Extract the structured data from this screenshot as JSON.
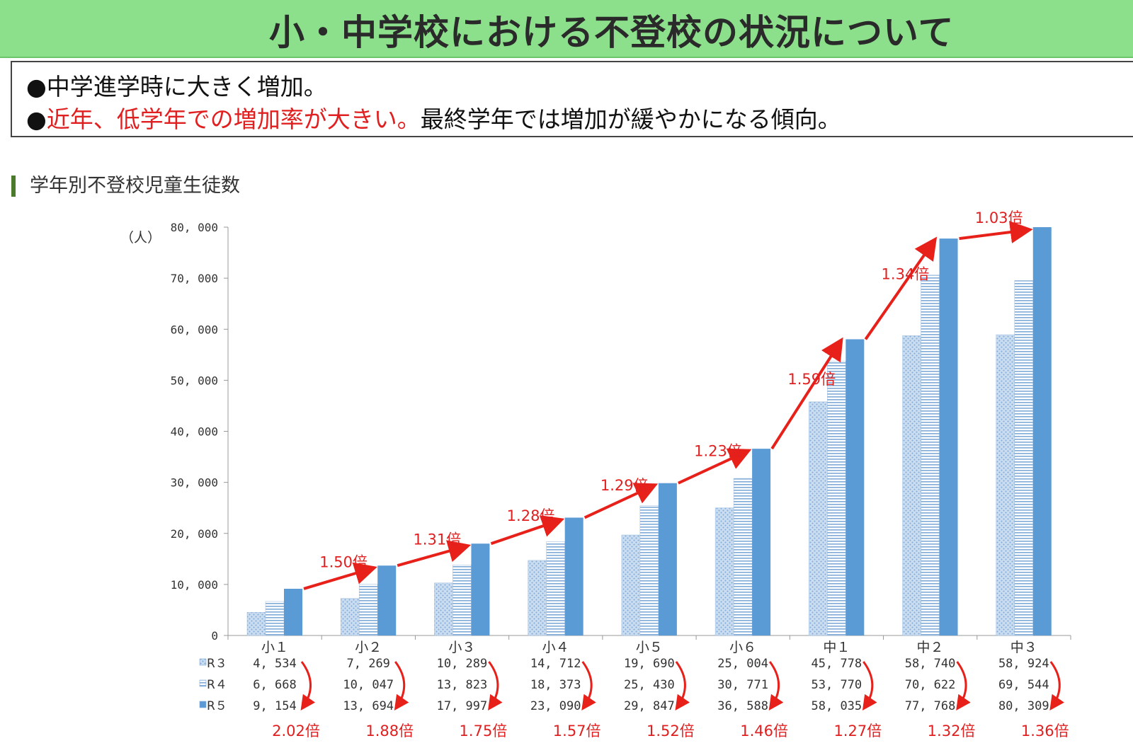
{
  "header": {
    "title": "小・中学校における不登校の状況について"
  },
  "summary": {
    "line1_bullet": "●",
    "line1_text": "中学進学時に大きく増加。",
    "line2_bullet": "●",
    "line2_red": "近年、低学年での増加率が大きい。",
    "line2_rest": "最終学年では増加が緩やかになる傾向。"
  },
  "section": {
    "title": "学年別不登校児童生徒数"
  },
  "colors": {
    "r3": "#a9c7e6",
    "r4": "#8fb3da",
    "r5": "#5b9bd5",
    "arrow": "#e8201a",
    "title_bg": "#8ce08c"
  },
  "chart_data": {
    "type": "bar",
    "unit_label": "（人）",
    "ylim": [
      0,
      80000
    ],
    "yticks": [
      0,
      10000,
      20000,
      30000,
      40000,
      50000,
      60000,
      70000,
      80000
    ],
    "ytick_labels": [
      "0",
      "10, 000",
      "20, 000",
      "30, 000",
      "40, 000",
      "50, 000",
      "60, 000",
      "70, 000",
      "80, 000"
    ],
    "categories": [
      "小１",
      "小２",
      "小３",
      "小４",
      "小５",
      "小６",
      "中１",
      "中２",
      "中３"
    ],
    "series": [
      {
        "name": "R３",
        "values": [
          4534,
          7269,
          10289,
          14712,
          19690,
          25004,
          45778,
          58740,
          58924
        ],
        "labels": [
          "4, 534",
          "7, 269",
          "10, 289",
          "14, 712",
          "19, 690",
          "25, 004",
          "45, 778",
          "58, 740",
          "58, 924"
        ]
      },
      {
        "name": "R４",
        "values": [
          6668,
          10047,
          13823,
          18373,
          25430,
          30771,
          53770,
          70622,
          69544
        ],
        "labels": [
          "6, 668",
          "10, 047",
          "13, 823",
          "18, 373",
          "25, 430",
          "30, 771",
          "53, 770",
          "70, 622",
          "69, 544"
        ]
      },
      {
        "name": "R５",
        "values": [
          9154,
          13694,
          17997,
          23090,
          29847,
          36588,
          58035,
          77768,
          80309
        ],
        "labels": [
          "9, 154",
          "13, 694",
          "17, 997",
          "23, 090",
          "29, 847",
          "36, 588",
          "58, 035",
          "77, 768",
          "80, 309"
        ]
      }
    ],
    "grade_ratios": [
      "1.50倍",
      "1.31倍",
      "1.28倍",
      "1.29倍",
      "1.23倍",
      "1.59倍",
      "1.34倍",
      "1.03倍"
    ],
    "yoy_ratios": [
      "2.02倍",
      "1.88倍",
      "1.75倍",
      "1.57倍",
      "1.52倍",
      "1.46倍",
      "1.27倍",
      "1.32倍",
      "1.36倍"
    ],
    "grid": false,
    "legend": "table-left"
  }
}
